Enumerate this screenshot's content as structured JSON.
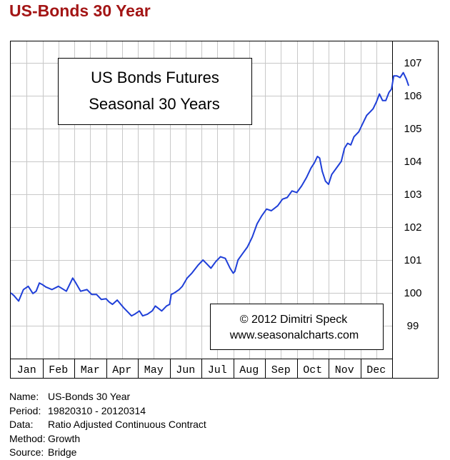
{
  "page": {
    "title": "US-Bonds 30 Year"
  },
  "chart_data": {
    "type": "line",
    "title": "US Bonds Futures",
    "subtitle": "Seasonal 30 Years",
    "copyright_line1": "© 2012  Dimitri Speck",
    "copyright_line2": "www.seasonalcharts.com",
    "categories": [
      "Jan",
      "Feb",
      "Mar",
      "Apr",
      "May",
      "Jun",
      "Jul",
      "Aug",
      "Sep",
      "Oct",
      "Nov",
      "Dec"
    ],
    "y_ticks": [
      "99",
      "100",
      "101",
      "102",
      "103",
      "104",
      "105",
      "106",
      "107"
    ],
    "ylim": [
      98.0,
      107.65
    ],
    "grid": true,
    "line_color": "#1f3fd8",
    "series": [
      {
        "values": [
          [
            0.0,
            100.0
          ],
          [
            0.1,
            99.92
          ],
          [
            0.25,
            99.75
          ],
          [
            0.4,
            100.1
          ],
          [
            0.55,
            100.2
          ],
          [
            0.7,
            99.98
          ],
          [
            0.8,
            100.05
          ],
          [
            0.9,
            100.3
          ],
          [
            1.0,
            100.25
          ],
          [
            1.1,
            100.18
          ],
          [
            1.3,
            100.1
          ],
          [
            1.5,
            100.2
          ],
          [
            1.75,
            100.05
          ],
          [
            1.95,
            100.45
          ],
          [
            2.05,
            100.3
          ],
          [
            2.2,
            100.05
          ],
          [
            2.4,
            100.1
          ],
          [
            2.55,
            99.95
          ],
          [
            2.7,
            99.95
          ],
          [
            2.85,
            99.8
          ],
          [
            3.0,
            99.82
          ],
          [
            3.1,
            99.72
          ],
          [
            3.2,
            99.65
          ],
          [
            3.35,
            99.78
          ],
          [
            3.55,
            99.55
          ],
          [
            3.7,
            99.4
          ],
          [
            3.8,
            99.3
          ],
          [
            3.9,
            99.35
          ],
          [
            4.05,
            99.45
          ],
          [
            4.15,
            99.3
          ],
          [
            4.3,
            99.35
          ],
          [
            4.45,
            99.45
          ],
          [
            4.55,
            99.6
          ],
          [
            4.75,
            99.45
          ],
          [
            4.9,
            99.6
          ],
          [
            5.0,
            99.65
          ],
          [
            5.05,
            99.95
          ],
          [
            5.15,
            100.0
          ],
          [
            5.3,
            100.1
          ],
          [
            5.4,
            100.2
          ],
          [
            5.55,
            100.45
          ],
          [
            5.7,
            100.6
          ],
          [
            5.9,
            100.85
          ],
          [
            6.05,
            101.0
          ],
          [
            6.15,
            100.9
          ],
          [
            6.3,
            100.75
          ],
          [
            6.45,
            100.95
          ],
          [
            6.6,
            101.1
          ],
          [
            6.75,
            101.05
          ],
          [
            6.9,
            100.75
          ],
          [
            7.0,
            100.6
          ],
          [
            7.05,
            100.65
          ],
          [
            7.15,
            101.0
          ],
          [
            7.3,
            101.2
          ],
          [
            7.45,
            101.4
          ],
          [
            7.6,
            101.7
          ],
          [
            7.75,
            102.1
          ],
          [
            7.9,
            102.35
          ],
          [
            8.05,
            102.55
          ],
          [
            8.2,
            102.5
          ],
          [
            8.4,
            102.65
          ],
          [
            8.55,
            102.85
          ],
          [
            8.7,
            102.9
          ],
          [
            8.85,
            103.1
          ],
          [
            9.0,
            103.05
          ],
          [
            9.15,
            103.25
          ],
          [
            9.3,
            103.5
          ],
          [
            9.45,
            103.8
          ],
          [
            9.55,
            103.95
          ],
          [
            9.65,
            104.15
          ],
          [
            9.72,
            104.1
          ],
          [
            9.8,
            103.7
          ],
          [
            9.9,
            103.4
          ],
          [
            10.0,
            103.3
          ],
          [
            10.1,
            103.6
          ],
          [
            10.25,
            103.8
          ],
          [
            10.4,
            104.0
          ],
          [
            10.5,
            104.4
          ],
          [
            10.6,
            104.55
          ],
          [
            10.7,
            104.5
          ],
          [
            10.8,
            104.75
          ],
          [
            10.95,
            104.9
          ],
          [
            11.1,
            105.2
          ],
          [
            11.2,
            105.4
          ],
          [
            11.3,
            105.5
          ],
          [
            11.4,
            105.6
          ],
          [
            11.5,
            105.8
          ],
          [
            11.6,
            106.05
          ],
          [
            11.7,
            105.85
          ],
          [
            11.8,
            105.85
          ],
          [
            11.9,
            106.1
          ],
          [
            11.98,
            106.2
          ],
          [
            12.05,
            106.6
          ],
          [
            12.15,
            106.6
          ],
          [
            12.25,
            106.55
          ],
          [
            12.35,
            106.7
          ],
          [
            12.45,
            106.5
          ],
          [
            12.52,
            106.3
          ]
        ]
      }
    ]
  },
  "meta": [
    {
      "label": "Name:",
      "value": "US-Bonds 30 Year"
    },
    {
      "label": "Period:",
      "value": "19820310 - 20120314"
    },
    {
      "label": "Data:",
      "value": "Ratio Adjusted Continuous Contract"
    },
    {
      "label": "Method:",
      "value": "Growth"
    },
    {
      "label": "Source:",
      "value": "Bridge"
    }
  ]
}
